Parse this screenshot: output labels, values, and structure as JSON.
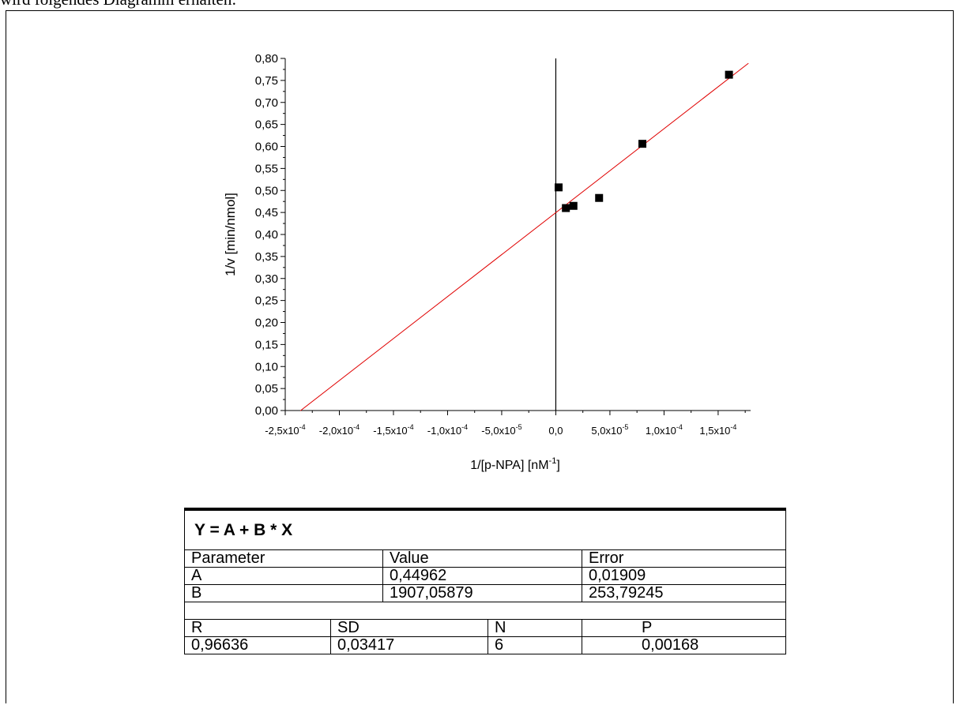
{
  "intro_text": "wird folgendes Diagramm erhalten:",
  "chart_data": {
    "type": "scatter",
    "xlabel": "1/[p-NPA]  [nM-1]",
    "xlabel_main": "1/[p-NPA]  [nM",
    "xlabel_sup": "-1",
    "xlabel_tail": "]",
    "ylabel": "1/v  [min/nmol]",
    "xlim": [
      -0.00025,
      0.00018
    ],
    "ylim": [
      0.0,
      0.8
    ],
    "x_ticks": [
      {
        "value": -0.00025,
        "mant": "-2,5x10",
        "exp": "-4"
      },
      {
        "value": -0.0002,
        "mant": "-2,0x10",
        "exp": "-4"
      },
      {
        "value": -0.00015,
        "mant": "-1,5x10",
        "exp": "-4"
      },
      {
        "value": -0.0001,
        "mant": "-1,0x10",
        "exp": "-4"
      },
      {
        "value": -5e-05,
        "mant": "-5,0x10",
        "exp": "-5"
      },
      {
        "value": 0.0,
        "mant": "0,0",
        "exp": ""
      },
      {
        "value": 5e-05,
        "mant": "5,0x10",
        "exp": "-5"
      },
      {
        "value": 0.0001,
        "mant": "1,0x10",
        "exp": "-4"
      },
      {
        "value": 0.00015,
        "mant": "1,5x10",
        "exp": "-4"
      }
    ],
    "y_ticks": [
      "0,00",
      "0,05",
      "0,10",
      "0,15",
      "0,20",
      "0,25",
      "0,30",
      "0,35",
      "0,40",
      "0,45",
      "0,50",
      "0,55",
      "0,60",
      "0,65",
      "0,70",
      "0,75",
      "0,80"
    ],
    "series": [
      {
        "points": [
          {
            "x": 2.6e-06,
            "y": 0.507
          },
          {
            "x": 9.3e-06,
            "y": 0.46
          },
          {
            "x": 1.63e-05,
            "y": 0.465
          },
          {
            "x": 4e-05,
            "y": 0.483
          },
          {
            "x": 8e-05,
            "y": 0.606
          },
          {
            "x": 0.00016,
            "y": 0.763
          }
        ],
        "color": "#000000"
      }
    ],
    "fit_line": {
      "intercept": 0.44962,
      "slope": 1907.05879,
      "x_range": [
        -0.000236,
        0.000178
      ],
      "color": "#e00000"
    },
    "grid": false
  },
  "fit_table": {
    "equation": "Y = A + B * X",
    "headers": [
      "Parameter",
      "Value",
      "Error"
    ],
    "rows": [
      [
        "A",
        "0,44962",
        "0,01909"
      ],
      [
        "B",
        "1907,05879",
        "253,79245"
      ]
    ],
    "stats_headers": [
      "R",
      "SD",
      "N",
      "P"
    ],
    "stats_values": [
      "0,96636",
      "0,03417",
      "6",
      "0,00168"
    ]
  }
}
